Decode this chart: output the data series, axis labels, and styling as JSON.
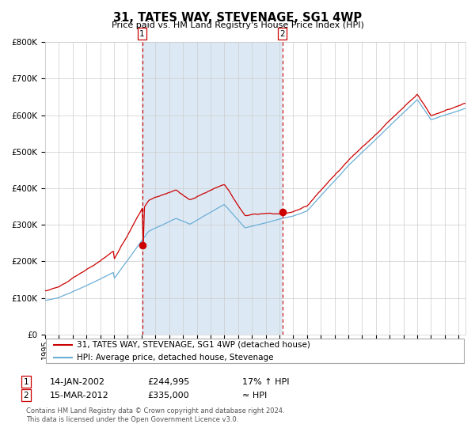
{
  "title": "31, TATES WAY, STEVENAGE, SG1 4WP",
  "subtitle": "Price paid vs. HM Land Registry's House Price Index (HPI)",
  "legend_line1": "31, TATES WAY, STEVENAGE, SG1 4WP (detached house)",
  "legend_line2": "HPI: Average price, detached house, Stevenage",
  "annotation1_date": "14-JAN-2002",
  "annotation1_price": "£244,995",
  "annotation1_hpi": "17% ↑ HPI",
  "annotation2_date": "15-MAR-2012",
  "annotation2_price": "£335,000",
  "annotation2_hpi": "≈ HPI",
  "line_color_red": "#cc0000",
  "line_color_blue": "#6baed6",
  "shaded_region_color": "#dce9f5",
  "dashed_line_color": "#cc0000",
  "background_color": "#ffffff",
  "grid_color": "#cccccc",
  "footer1": "Contains HM Land Registry data © Crown copyright and database right 2024.",
  "footer2": "This data is licensed under the Open Government Licence v3.0.",
  "event1_year": 2002.04,
  "event2_year": 2012.21,
  "point1_price": 244995,
  "point2_price": 335000,
  "ylim": [
    0,
    800000
  ],
  "yticks": [
    0,
    100000,
    200000,
    300000,
    400000,
    500000,
    600000,
    700000,
    800000
  ],
  "xlim_start": 1995,
  "xlim_end": 2025.5
}
